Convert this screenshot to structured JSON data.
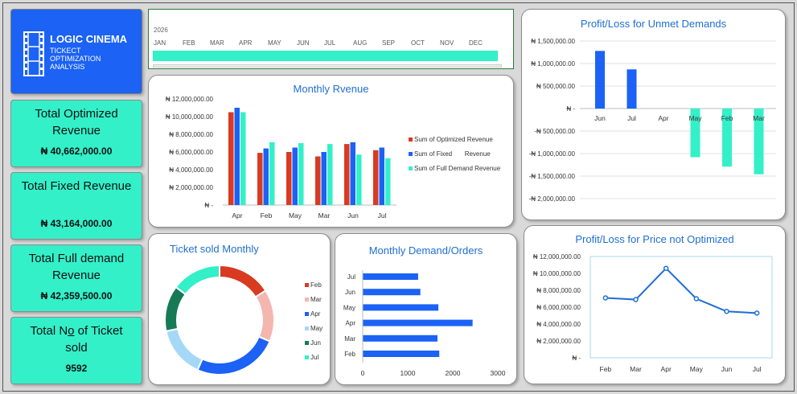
{
  "brand": {
    "name": "LOGIC CINEMA",
    "subtitle_lines": [
      "TICKECT",
      "OPTIMIZATION",
      "ANALYSIS"
    ]
  },
  "kpis": [
    {
      "title": "Total Optimized Revenue",
      "value": "₦ 40,662,000.00"
    },
    {
      "title": "Total Fixed Revenue",
      "value": "₦ 43,164,000.00"
    },
    {
      "title": "Total Full demand Revenue",
      "value": "₦ 42,359,500.00"
    },
    {
      "title_pre": "Total N",
      "title_o": "o",
      "title_post": " of Ticket sold",
      "value": "9592"
    }
  ],
  "timeline": {
    "year": "2026",
    "months": [
      "JAN",
      "FEB",
      "MAR",
      "APR",
      "MAY",
      "JUN",
      "JUL",
      "AUG",
      "SEP",
      "OCT",
      "NOV",
      "DEC"
    ]
  },
  "colors": {
    "red": "#d93a22",
    "blue": "#1b62f5",
    "teal": "#33f0c9",
    "title": "#1f6fd1"
  },
  "chart_data": [
    {
      "id": "monthly-revenue",
      "type": "bar",
      "title": "Monthly Rvenue",
      "categories": [
        "Apr",
        "Feb",
        "May",
        "Mar",
        "Jun",
        "Jul"
      ],
      "series": [
        {
          "name": "Sum of Optimized Revenue",
          "color": "#d93a22",
          "values": [
            10500000,
            5900000,
            6000000,
            5500000,
            6900000,
            6200000
          ]
        },
        {
          "name": "Sum of Fixed       Revenue",
          "color": "#1b62f5",
          "values": [
            11000000,
            6400000,
            6500000,
            6000000,
            7100000,
            6500000
          ]
        },
        {
          "name": "Sum of Full Demand Revenue",
          "color": "#33f0c9",
          "values": [
            10500000,
            7100000,
            7000000,
            6900000,
            5700000,
            5300000
          ]
        }
      ],
      "ylim": [
        0,
        12000000
      ],
      "yticks": [
        "₦ 12,000,000.00",
        "₦ 10,000,000.00",
        "₦ 8,000,000.00",
        "₦ 6,000,000.00",
        "₦ 4,000,000.00",
        "₦ 2,000,000.00",
        "₦ -"
      ],
      "legend": "right"
    },
    {
      "id": "profit-unmet",
      "type": "bar",
      "title": "Profit/Loss for Unmet Demands",
      "categories": [
        "Jun",
        "Jul",
        "Apr",
        "May",
        "Feb",
        "Mar"
      ],
      "values": [
        1280000,
        870000,
        0,
        -1080000,
        -1290000,
        -1460000
      ],
      "ylim": [
        -2000000,
        1500000
      ],
      "yticks": [
        "₦ 1,500,000.00",
        "₦ 1,000,000.00",
        "₦ 500,000.00",
        "₦ -",
        "-₦ 500,000.00",
        "-₦ 1,000,000.00",
        "-₦ 1,500,000.00",
        "-₦ 2,000,000.00"
      ]
    },
    {
      "id": "tickets-monthly",
      "type": "pie",
      "title": "Ticket sold Monthly",
      "categories": [
        "Feb",
        "Mar",
        "Apr",
        "May",
        "Jun",
        "Jul"
      ],
      "values": [
        1530,
        1480,
        2420,
        1450,
        1300,
        1412
      ],
      "colors": [
        "#d93a22",
        "#f4b6ae",
        "#1b62f5",
        "#a5d8f7",
        "#167a55",
        "#33f0c9"
      ]
    },
    {
      "id": "demand-orders",
      "type": "bar",
      "title": "Monthly Demand/Orders",
      "orientation": "horizontal",
      "categories": [
        "Jul",
        "Jun",
        "May",
        "Apr",
        "Mar",
        "Feb"
      ],
      "values": [
        1230,
        1280,
        1680,
        2440,
        1660,
        1700
      ],
      "xlim": [
        0,
        3000
      ],
      "xticks": [
        "0",
        "1000",
        "2000",
        "3000"
      ]
    },
    {
      "id": "profit-price",
      "type": "line",
      "title": "Profit/Loss for Price not Optimized",
      "categories": [
        "Feb",
        "Mar",
        "Apr",
        "May",
        "Jun",
        "Jul"
      ],
      "values": [
        7100000,
        6900000,
        10600000,
        7000000,
        5500000,
        5300000
      ],
      "ylim": [
        0,
        12000000
      ],
      "yticks": [
        "₦ 12,000,000.00",
        "₦ 10,000,000.00",
        "₦ 8,000,000.00",
        "₦ 6,000,000.00",
        "₦ 4,000,000.00",
        "₦ 2,000,000.00",
        "₦ -"
      ]
    }
  ]
}
